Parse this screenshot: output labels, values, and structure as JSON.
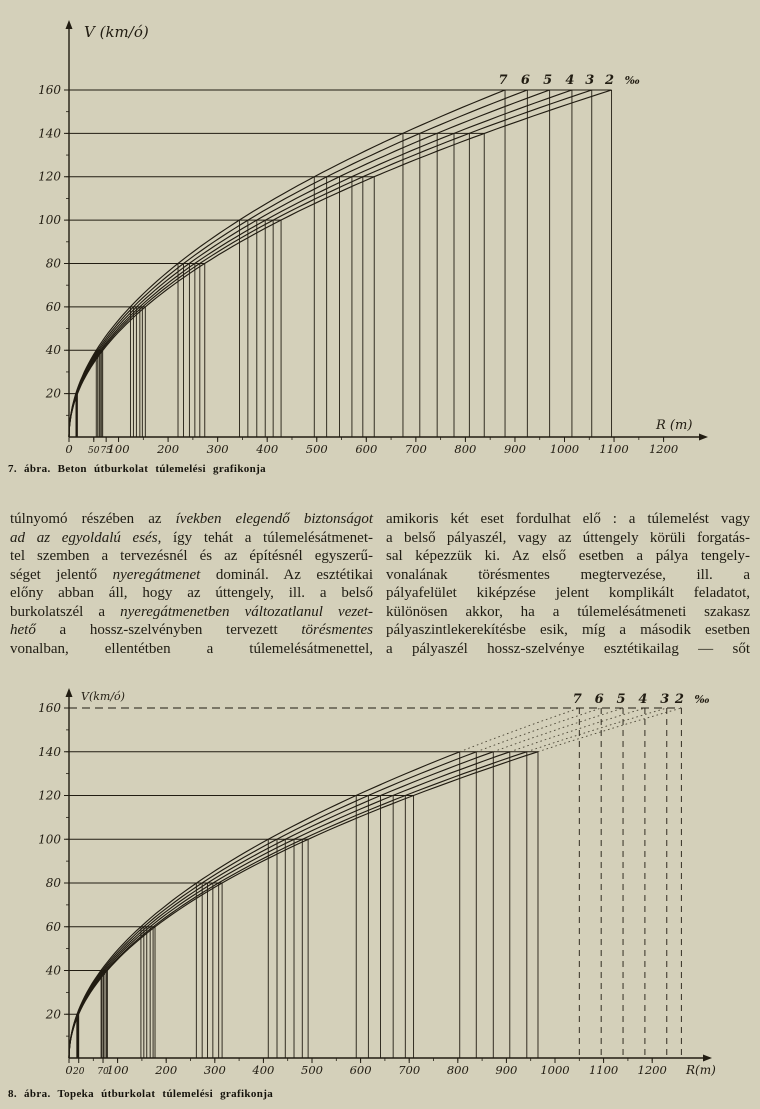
{
  "page": {
    "bg": "#d4d0ba",
    "ink": "#211c12",
    "caption_ink": "#15130c"
  },
  "chart_data": [
    {
      "type": "line",
      "title": "7. ábra. Beton útburkolat túlemelési grafikonja",
      "xlabel": "R (m)",
      "ylabel": "V (km/ó)",
      "unit": "‰",
      "xlim": [
        0,
        1290
      ],
      "ylim": [
        0,
        185
      ],
      "x_ticks": [
        0,
        50,
        75,
        100,
        200,
        300,
        400,
        500,
        600,
        700,
        800,
        900,
        1000,
        1100,
        1200
      ],
      "y_ticks": [
        20,
        40,
        60,
        80,
        100,
        120,
        140,
        160
      ],
      "speed_levels": [
        20,
        40,
        60,
        80,
        100,
        120,
        140,
        160
      ],
      "solid_max_speed": 160,
      "legend_position": "curve labels above top gridline",
      "grid": "horizontal lines at each speed level with vertical drop lines at every curve crossing",
      "series": [
        {
          "name": "7",
          "superelevation_permille": 7,
          "r_at_v160": 880,
          "radii": [
            14,
            55,
            124,
            220,
            344,
            495,
            674,
            880
          ]
        },
        {
          "name": "6",
          "superelevation_permille": 6,
          "r_at_v160": 925,
          "radii": [
            14,
            58,
            130,
            231,
            361,
            520,
            708,
            925
          ]
        },
        {
          "name": "5",
          "superelevation_permille": 5,
          "r_at_v160": 970,
          "radii": [
            15,
            61,
            136,
            243,
            379,
            546,
            743,
            970
          ]
        },
        {
          "name": "4",
          "superelevation_permille": 4,
          "r_at_v160": 1015,
          "radii": [
            16,
            63,
            143,
            254,
            396,
            571,
            777,
            1015
          ]
        },
        {
          "name": "3",
          "superelevation_permille": 3,
          "r_at_v160": 1055,
          "radii": [
            16,
            66,
            148,
            264,
            412,
            593,
            808,
            1055
          ]
        },
        {
          "name": "2",
          "superelevation_permille": 2,
          "r_at_v160": 1095,
          "radii": [
            17,
            68,
            154,
            274,
            428,
            616,
            838,
            1095
          ]
        }
      ]
    },
    {
      "type": "line",
      "title": "8. ábra. Topeka útburkolat túlemelési grafikonja",
      "xlabel": "R(m)",
      "ylabel": "V(km/ó)",
      "unit": "‰",
      "xlim": [
        0,
        1320
      ],
      "ylim": [
        0,
        185
      ],
      "x_ticks": [
        0,
        20,
        70,
        100,
        200,
        300,
        400,
        500,
        600,
        700,
        800,
        900,
        1000,
        1100,
        1200
      ],
      "y_ticks": [
        20,
        40,
        60,
        80,
        100,
        120,
        140,
        160
      ],
      "speed_levels": [
        20,
        40,
        60,
        80,
        100,
        120,
        140,
        160
      ],
      "solid_max_speed": 140,
      "legend_position": "curve labels above dashed 160 gridline",
      "grid": "horizontal lines at each speed level; dashed line and dashed drop lines at 160 km/ó; curves dotted above 140 km/ó",
      "series": [
        {
          "name": "7",
          "superelevation_permille": 7,
          "r_at_v160": 1050,
          "radii": [
            16,
            66,
            148,
            262,
            410,
            591,
            804,
            1050
          ]
        },
        {
          "name": "6",
          "superelevation_permille": 6,
          "r_at_v160": 1095,
          "radii": [
            17,
            68,
            154,
            274,
            428,
            616,
            838,
            1095
          ]
        },
        {
          "name": "5",
          "superelevation_permille": 5,
          "r_at_v160": 1140,
          "radii": [
            18,
            71,
            160,
            285,
            445,
            641,
            873,
            1140
          ]
        },
        {
          "name": "4",
          "superelevation_permille": 4,
          "r_at_v160": 1185,
          "radii": [
            19,
            74,
            167,
            296,
            463,
            667,
            907,
            1185
          ]
        },
        {
          "name": "3",
          "superelevation_permille": 3,
          "r_at_v160": 1230,
          "radii": [
            19,
            77,
            173,
            308,
            480,
            692,
            942,
            1230
          ]
        },
        {
          "name": "2",
          "superelevation_permille": 2,
          "r_at_v160": 1260,
          "radii": [
            20,
            79,
            177,
            315,
            492,
            709,
            965,
            1260
          ]
        }
      ]
    }
  ],
  "body_text": {
    "columns": [
      {
        "lines": [
          [
            {
              "t": "túlnyomó részében az "
            },
            {
              "t": "ívekben elegendő biztonságot",
              "i": true
            }
          ],
          [
            {
              "t": "ad az egyoldalú esés",
              "i": true
            },
            {
              "t": ", így tehát a túlemelésátmenet-"
            }
          ],
          [
            {
              "t": "tel szemben a tervezésnél és az építésnél egyszerű-"
            }
          ],
          [
            {
              "t": "séget jelentő "
            },
            {
              "t": "nyeregátmenet",
              "i": true
            },
            {
              "t": " dominál. Az esztétikai"
            }
          ],
          [
            {
              "t": "előny abban áll, hogy az úttengely, ill. a belső"
            }
          ],
          [
            {
              "t": "burkolatszél a "
            },
            {
              "t": "nyeregátmenetben változatlanul vezet-",
              "i": true
            }
          ],
          [
            {
              "t": "hető",
              "i": true
            },
            {
              "t": " a hossz-szelvényben tervezett "
            },
            {
              "t": "törésmentes",
              "i": true
            }
          ],
          [
            {
              "t": "vonalban, ellentétben a túlemelésátmenettel,"
            }
          ]
        ]
      },
      {
        "lines": [
          [
            {
              "t": "amikoris két eset fordulhat elő : a túlemelést vagy"
            }
          ],
          [
            {
              "t": "a belső pályaszél, vagy az úttengely körüli forgatás-"
            }
          ],
          [
            {
              "t": "sal képezzük ki. Az első esetben a pálya tengely-"
            }
          ],
          [
            {
              "t": "vonalának törésmentes megtervezése, ill. a"
            }
          ],
          [
            {
              "t": "pályafelület kiképzése jelent komplikált feladatot,"
            }
          ],
          [
            {
              "t": "különösen akkor, ha a túlemelésátmeneti szakasz"
            }
          ],
          [
            {
              "t": "pályaszintlekerekítésbe esik, míg a második esetben"
            }
          ],
          [
            {
              "t": "a pályaszél hossz-szelvénye esztétikailag — sőt"
            }
          ]
        ]
      }
    ]
  }
}
